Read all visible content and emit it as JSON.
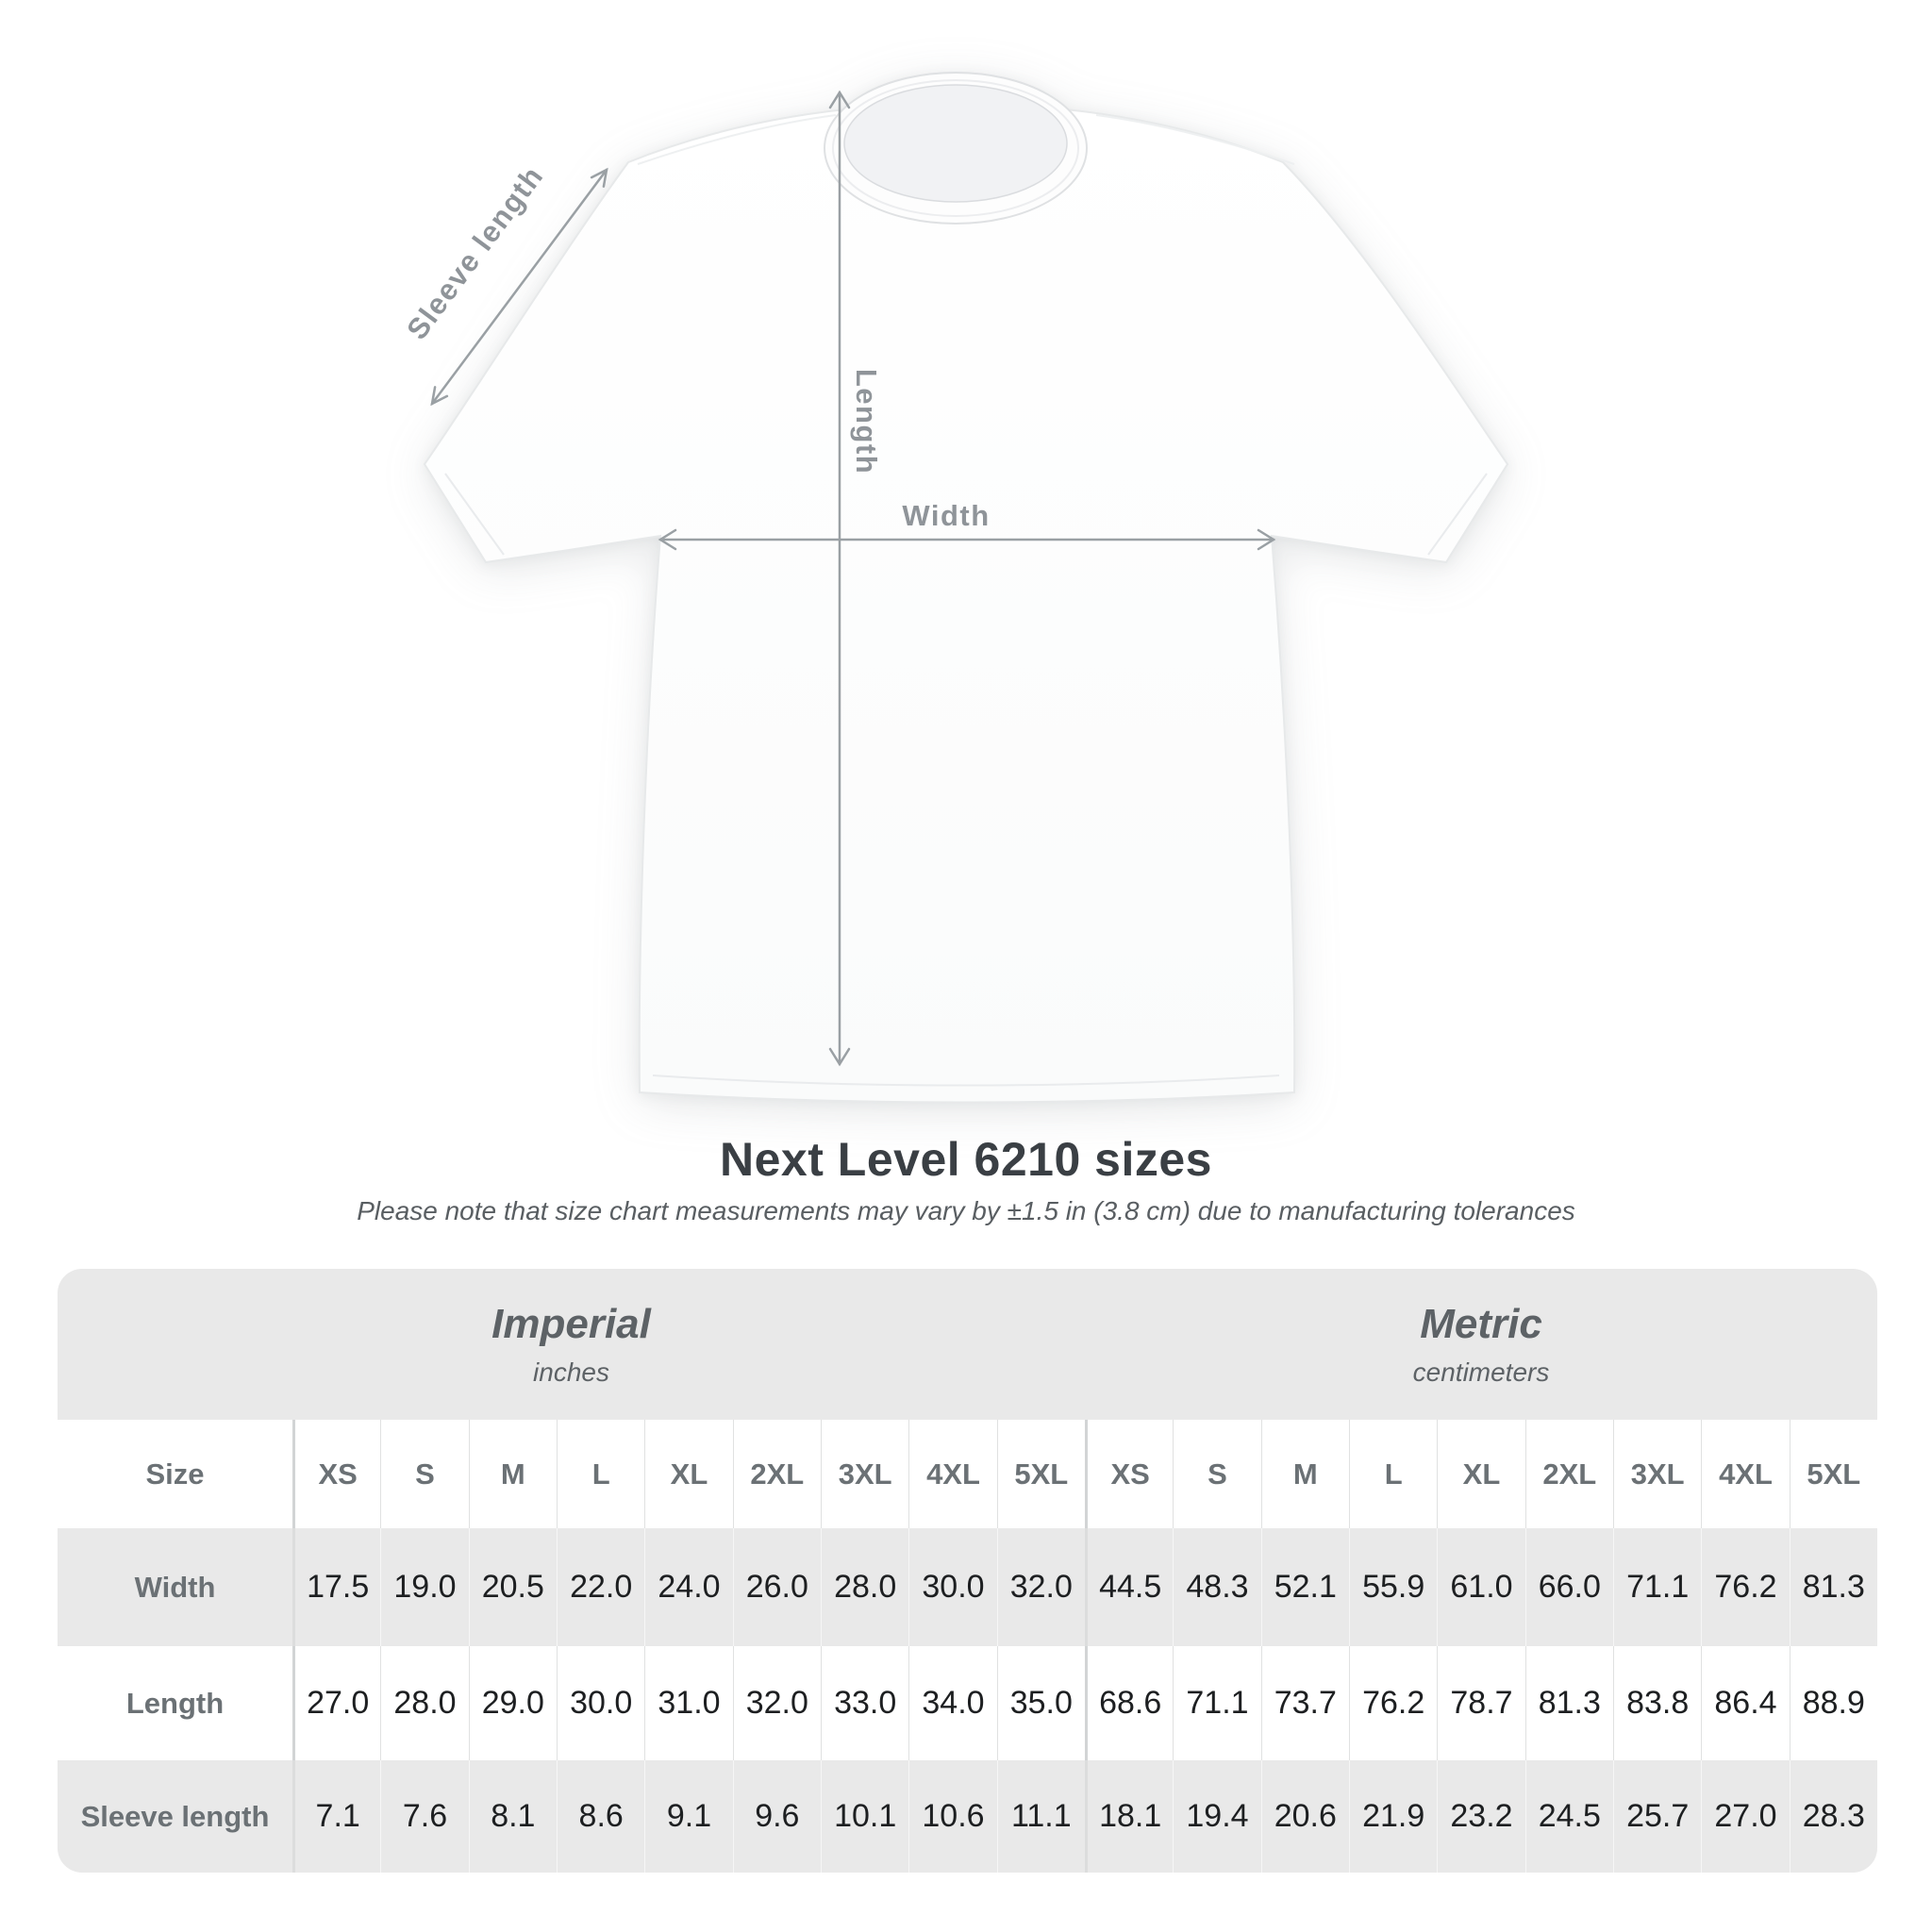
{
  "shirt_diagram": {
    "labels": {
      "sleeve_length": "Sleeve length",
      "length": "Length",
      "width": "Width"
    },
    "arrow_color": "#9aa0a4",
    "label_color": "#8f9499"
  },
  "title": "Next Level 6210 sizes",
  "subtitle": "Please note that size chart measurements may vary by ±1.5 in (3.8 cm) due to manufacturing tolerances",
  "table": {
    "unit_groups": [
      {
        "label": "Imperial",
        "sublabel": "inches"
      },
      {
        "label": "Metric",
        "sublabel": "centimeters"
      }
    ],
    "size_column_header": "Size",
    "size_headers": [
      "XS",
      "S",
      "M",
      "L",
      "XL",
      "2XL",
      "3XL",
      "4XL",
      "5XL"
    ],
    "rows": [
      {
        "label": "Width",
        "imperial": [
          "17.5",
          "19.0",
          "20.5",
          "22.0",
          "24.0",
          "26.0",
          "28.0",
          "30.0",
          "32.0"
        ],
        "metric": [
          "44.5",
          "48.3",
          "52.1",
          "55.9",
          "61.0",
          "66.0",
          "71.1",
          "76.2",
          "81.3"
        ]
      },
      {
        "label": "Length",
        "imperial": [
          "27.0",
          "28.0",
          "29.0",
          "30.0",
          "31.0",
          "32.0",
          "33.0",
          "34.0",
          "35.0"
        ],
        "metric": [
          "68.6",
          "71.1",
          "73.7",
          "76.2",
          "78.7",
          "81.3",
          "83.8",
          "86.4",
          "88.9"
        ]
      },
      {
        "label": "Sleeve length",
        "imperial": [
          "7.1",
          "7.6",
          "8.1",
          "8.6",
          "9.1",
          "9.6",
          "10.1",
          "10.6",
          "11.1"
        ],
        "metric": [
          "18.1",
          "19.4",
          "20.6",
          "21.9",
          "23.2",
          "24.5",
          "25.7",
          "27.0",
          "28.3"
        ]
      }
    ]
  },
  "colors": {
    "band_gray": "#e9e9e9",
    "stripe_gray": "#e9e9e9",
    "header_text": "#6b7175",
    "value_text": "#1d1f21",
    "title_text": "#3a3f44",
    "subtitle_text": "#595e62",
    "diagram_gray": "#9aa0a4"
  }
}
